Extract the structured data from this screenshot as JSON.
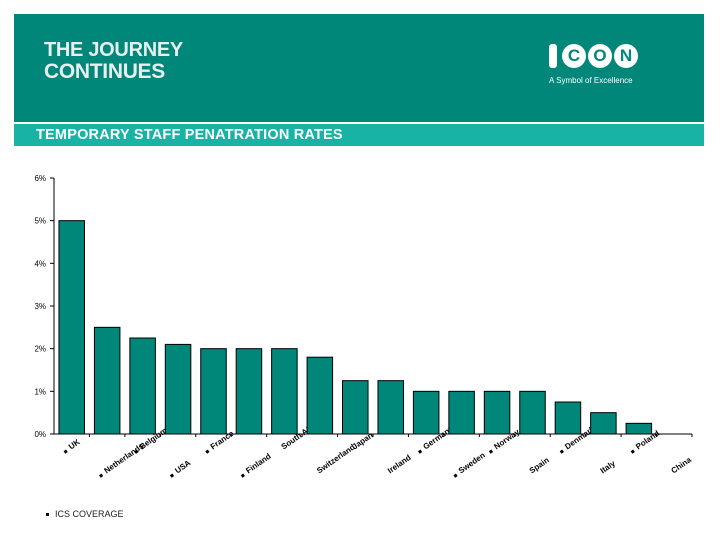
{
  "banner": {
    "title_line1": "THE JOURNEY",
    "title_line2": "CONTINUES",
    "logo_text": "ICON",
    "logo_tagline": "A Symbol of Excellence",
    "subtitle": "TEMPORARY STAFF PENATRATION RATES"
  },
  "colors": {
    "banner": "#00877a",
    "subbar": "#19b3a6",
    "bar": "#00877a"
  },
  "legend": {
    "label": "ICS COVERAGE"
  },
  "chart_data": {
    "type": "bar",
    "title": "TEMPORARY STAFF PENATRATION RATES",
    "categories": [
      "UK",
      "Netherlands",
      "Belgium",
      "USA",
      "France",
      "Finland",
      "South Africa",
      "Switzerland",
      "Japan",
      "Ireland",
      "Germany",
      "Sweden",
      "Norway",
      "Spain",
      "Denmark",
      "Italy",
      "Poland",
      "China"
    ],
    "values": [
      5.0,
      2.5,
      2.25,
      2.1,
      2.0,
      2.0,
      2.0,
      1.8,
      1.25,
      1.25,
      1.0,
      1.0,
      1.0,
      1.0,
      0.75,
      0.5,
      0.25,
      0
    ],
    "ics_coverage": [
      "UK",
      "Netherlands",
      "Belgium",
      "USA",
      "France",
      "Finland",
      "Germany",
      "Sweden",
      "Norway",
      "Denmark",
      "Poland"
    ],
    "yticks": [
      "0%",
      "1%",
      "2%",
      "3%",
      "4%",
      "5%",
      "6%"
    ],
    "ylim": [
      0,
      6
    ],
    "xlabel": "",
    "ylabel": "",
    "legend": "ICS COVERAGE"
  }
}
